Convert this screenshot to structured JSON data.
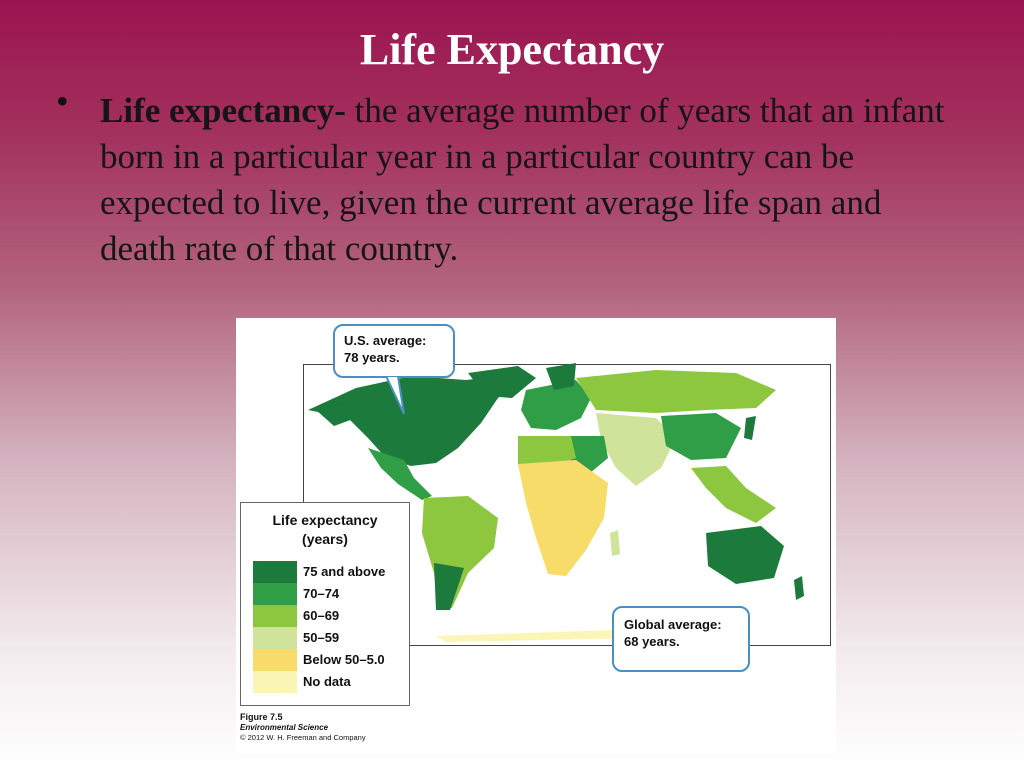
{
  "slide": {
    "title": "Life Expectancy",
    "bullet_term": "Life expectancy-",
    "bullet_body": " the average number of years that an infant born in a particular year in a particular country can be expected to live, given the current average life span and death rate of that country."
  },
  "figure": {
    "us_callout_line1": "U.S. average:",
    "us_callout_line2": "78 years.",
    "global_callout_line1": "Global average:",
    "global_callout_line2": "68 years.",
    "legend": {
      "title_line1": "Life expectancy",
      "title_line2": "(years)",
      "items": [
        {
          "label": "75 and above",
          "color": "#1b7a3c"
        },
        {
          "label": "70–74",
          "color": "#2f9e46"
        },
        {
          "label": "60–69",
          "color": "#8dc63f"
        },
        {
          "label": "50–59",
          "color": "#cfe39a"
        },
        {
          "label": "Below 50–5.0",
          "color": "#f7dc6a"
        },
        {
          "label": "No data",
          "color": "#fbf6b5"
        }
      ]
    },
    "caption_figure": "Figure 7.5",
    "caption_book": "Environmental Science",
    "caption_copyright": "© 2012 W. H. Freeman and Company"
  }
}
